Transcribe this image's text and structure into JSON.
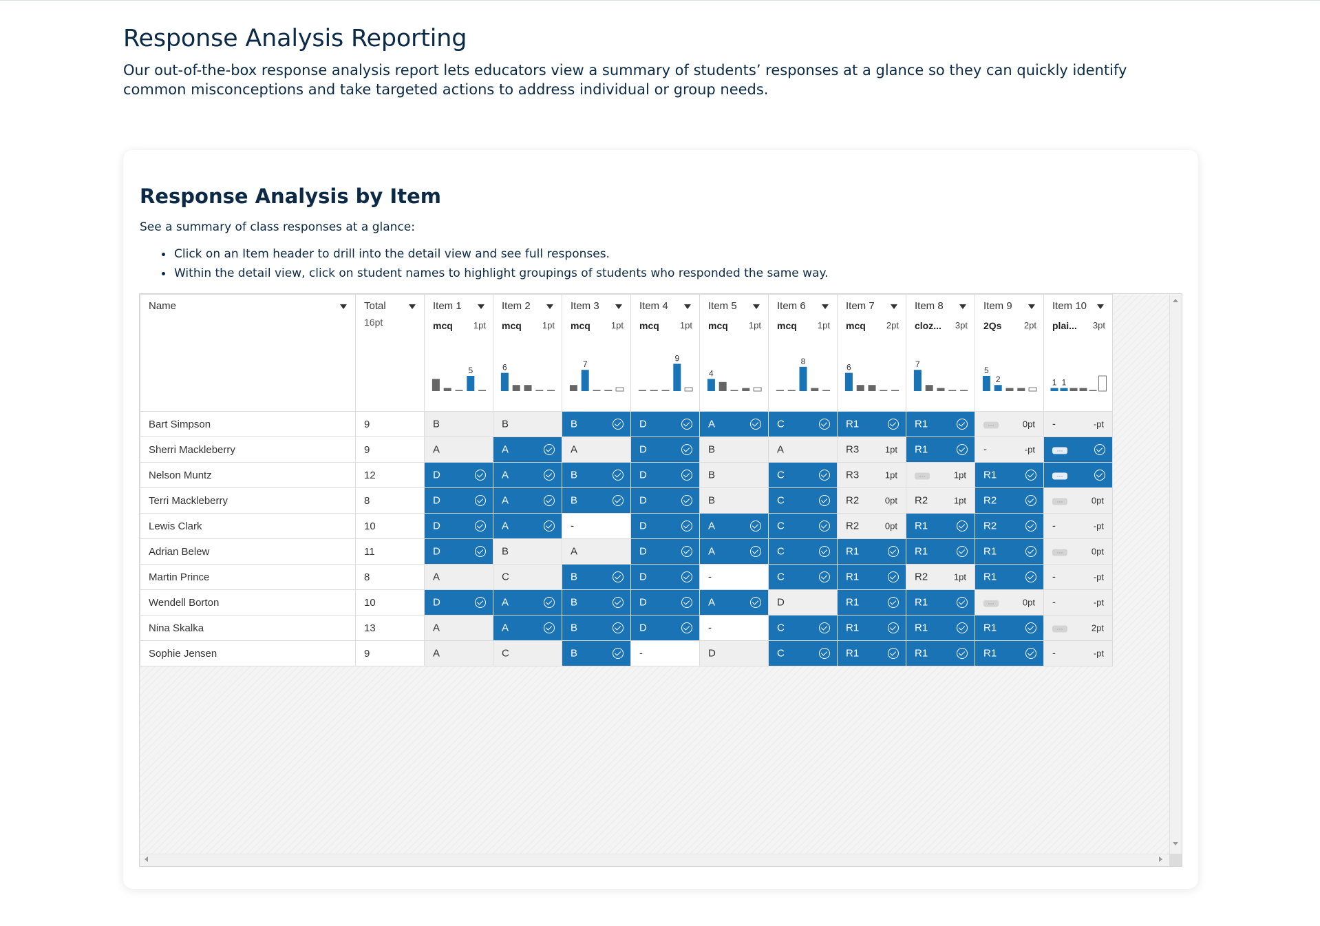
{
  "page": {
    "title": "Response Analysis Reporting",
    "intro": "Our out-of-the-box response analysis report lets educators view a summary of students’ responses at a glance so they can quickly identify common misconceptions and take targeted actions to address individual or group needs."
  },
  "card": {
    "title": "Response Analysis by Item",
    "subtitle": "See a summary of class responses at a glance:",
    "bullets": [
      "Click on an Item header to drill into the detail view and see full responses.",
      "Within the detail view, click on student names to highlight groupings of students who responded the same way."
    ]
  },
  "colors": {
    "correct": "#1a73b5",
    "incorrect": "#efefef",
    "bar_correct": "#1a73b5",
    "bar_other": "#666666"
  },
  "grid": {
    "name_header": "Name",
    "total_header": "Total",
    "total_points": "16pt",
    "items": [
      {
        "label": "Item 1",
        "type": "mcq",
        "pts": "1pt",
        "bars": [
          {
            "v": 4
          },
          {
            "v": 1
          },
          {
            "v": 0
          },
          {
            "v": 5,
            "c": true,
            "l": "5"
          },
          {
            "v": 0
          }
        ]
      },
      {
        "label": "Item 2",
        "type": "mcq",
        "pts": "1pt",
        "bars": [
          {
            "v": 6,
            "c": true,
            "l": "6"
          },
          {
            "v": 2
          },
          {
            "v": 2
          },
          {
            "v": 0
          },
          {
            "v": 0
          }
        ]
      },
      {
        "label": "Item 3",
        "type": "mcq",
        "pts": "1pt",
        "bars": [
          {
            "v": 2
          },
          {
            "v": 7,
            "c": true,
            "l": "7"
          },
          {
            "v": 0
          },
          {
            "v": 0
          },
          {
            "v": 1,
            "o": true
          }
        ]
      },
      {
        "label": "Item 4",
        "type": "mcq",
        "pts": "1pt",
        "bars": [
          {
            "v": 0
          },
          {
            "v": 0
          },
          {
            "v": 0
          },
          {
            "v": 9,
            "c": true,
            "l": "9"
          },
          {
            "v": 1,
            "o": true
          }
        ]
      },
      {
        "label": "Item 5",
        "type": "mcq",
        "pts": "1pt",
        "bars": [
          {
            "v": 4,
            "c": true,
            "l": "4"
          },
          {
            "v": 3
          },
          {
            "v": 0
          },
          {
            "v": 1
          },
          {
            "v": 2,
            "o": true
          }
        ]
      },
      {
        "label": "Item 6",
        "type": "mcq",
        "pts": "1pt",
        "bars": [
          {
            "v": 0
          },
          {
            "v": 0
          },
          {
            "v": 8,
            "c": true,
            "l": "8"
          },
          {
            "v": 1
          },
          {
            "v": 0
          }
        ]
      },
      {
        "label": "Item 7",
        "type": "mcq",
        "pts": "2pt",
        "bars": [
          {
            "v": 6,
            "c": true,
            "l": "6"
          },
          {
            "v": 2
          },
          {
            "v": 2
          },
          {
            "v": 0
          },
          {
            "v": 0
          }
        ]
      },
      {
        "label": "Item 8",
        "type": "cloz...",
        "pts": "3pt",
        "bars": [
          {
            "v": 7,
            "c": true,
            "l": "7"
          },
          {
            "v": 2
          },
          {
            "v": 1
          },
          {
            "v": 0
          },
          {
            "v": 0
          }
        ]
      },
      {
        "label": "Item 9",
        "type": "2Qs",
        "pts": "2pt",
        "bars": [
          {
            "v": 5,
            "c": true,
            "l": "5"
          },
          {
            "v": 2,
            "c": true,
            "l": "2"
          },
          {
            "v": 1
          },
          {
            "v": 1
          },
          {
            "v": 1,
            "o": true
          }
        ]
      },
      {
        "label": "Item 10",
        "type": "plai...",
        "pts": "3pt",
        "bars": [
          {
            "v": 1,
            "c": true,
            "l": "1"
          },
          {
            "v": 1,
            "c": true,
            "l": "1"
          },
          {
            "v": 1
          },
          {
            "v": 1
          },
          {
            "v": 0
          },
          {
            "v": 5,
            "o": true
          }
        ]
      }
    ],
    "rows": [
      {
        "name": "Bart Simpson",
        "total": "9",
        "cells": [
          {
            "v": "B"
          },
          {
            "v": "B"
          },
          {
            "v": "B",
            "c": 1
          },
          {
            "v": "D",
            "c": 1
          },
          {
            "v": "A",
            "c": 1
          },
          {
            "v": "C",
            "c": 1
          },
          {
            "v": "R1",
            "c": 1
          },
          {
            "v": "R1",
            "c": 1
          },
          {
            "e": 1,
            "p": "0pt"
          },
          {
            "v": "-",
            "p": "-pt"
          }
        ]
      },
      {
        "name": "Sherri Mackleberry",
        "total": "9",
        "cells": [
          {
            "v": "A"
          },
          {
            "v": "A",
            "c": 1
          },
          {
            "v": "A"
          },
          {
            "v": "D",
            "c": 1
          },
          {
            "v": "B"
          },
          {
            "v": "A"
          },
          {
            "v": "R3",
            "p": "1pt"
          },
          {
            "v": "R1",
            "c": 1
          },
          {
            "v": "-",
            "p": "-pt"
          },
          {
            "e": 1,
            "c": 1
          }
        ]
      },
      {
        "name": "Nelson Muntz",
        "total": "12",
        "cells": [
          {
            "v": "D",
            "c": 1
          },
          {
            "v": "A",
            "c": 1
          },
          {
            "v": "B",
            "c": 1
          },
          {
            "v": "D",
            "c": 1
          },
          {
            "v": "B"
          },
          {
            "v": "C",
            "c": 1
          },
          {
            "v": "R3",
            "p": "1pt"
          },
          {
            "e": 1,
            "p": "1pt"
          },
          {
            "v": "R1",
            "c": 1
          },
          {
            "e": 1,
            "c": 1
          }
        ]
      },
      {
        "name": "Terri Mackleberry",
        "total": "8",
        "cells": [
          {
            "v": "D",
            "c": 1
          },
          {
            "v": "A",
            "c": 1
          },
          {
            "v": "B",
            "c": 1
          },
          {
            "v": "D",
            "c": 1
          },
          {
            "v": "B"
          },
          {
            "v": "C",
            "c": 1
          },
          {
            "v": "R2",
            "p": "0pt"
          },
          {
            "v": "R2",
            "p": "1pt"
          },
          {
            "v": "R2",
            "c": 1
          },
          {
            "e": 1,
            "p": "0pt"
          }
        ]
      },
      {
        "name": "Lewis Clark",
        "total": "10",
        "cells": [
          {
            "v": "D",
            "c": 1
          },
          {
            "v": "A",
            "c": 1
          },
          {
            "v": "-",
            "b": 1
          },
          {
            "v": "D",
            "c": 1
          },
          {
            "v": "A",
            "c": 1
          },
          {
            "v": "C",
            "c": 1
          },
          {
            "v": "R2",
            "p": "0pt"
          },
          {
            "v": "R1",
            "c": 1
          },
          {
            "v": "R2",
            "c": 1
          },
          {
            "v": "-",
            "p": "-pt"
          }
        ]
      },
      {
        "name": "Adrian Belew",
        "total": "11",
        "cells": [
          {
            "v": "D",
            "c": 1
          },
          {
            "v": "B"
          },
          {
            "v": "A"
          },
          {
            "v": "D",
            "c": 1
          },
          {
            "v": "A",
            "c": 1
          },
          {
            "v": "C",
            "c": 1
          },
          {
            "v": "R1",
            "c": 1
          },
          {
            "v": "R1",
            "c": 1
          },
          {
            "v": "R1",
            "c": 1
          },
          {
            "e": 1,
            "p": "0pt"
          }
        ]
      },
      {
        "name": "Martin Prince",
        "total": "8",
        "cells": [
          {
            "v": "A"
          },
          {
            "v": "C"
          },
          {
            "v": "B",
            "c": 1
          },
          {
            "v": "D",
            "c": 1
          },
          {
            "v": "-",
            "b": 1
          },
          {
            "v": "C",
            "c": 1
          },
          {
            "v": "R1",
            "c": 1
          },
          {
            "v": "R2",
            "p": "1pt"
          },
          {
            "v": "R1",
            "c": 1
          },
          {
            "v": "-",
            "p": "-pt"
          }
        ]
      },
      {
        "name": "Wendell Borton",
        "total": "10",
        "cells": [
          {
            "v": "D",
            "c": 1
          },
          {
            "v": "A",
            "c": 1
          },
          {
            "v": "B",
            "c": 1
          },
          {
            "v": "D",
            "c": 1
          },
          {
            "v": "A",
            "c": 1
          },
          {
            "v": "D"
          },
          {
            "v": "R1",
            "c": 1
          },
          {
            "v": "R1",
            "c": 1
          },
          {
            "e": 1,
            "p": "0pt"
          },
          {
            "v": "-",
            "p": "-pt"
          }
        ]
      },
      {
        "name": "Nina Skalka",
        "total": "13",
        "cells": [
          {
            "v": "A"
          },
          {
            "v": "A",
            "c": 1
          },
          {
            "v": "B",
            "c": 1
          },
          {
            "v": "D",
            "c": 1
          },
          {
            "v": "-",
            "b": 1
          },
          {
            "v": "C",
            "c": 1
          },
          {
            "v": "R1",
            "c": 1
          },
          {
            "v": "R1",
            "c": 1
          },
          {
            "v": "R1",
            "c": 1
          },
          {
            "e": 1,
            "p": "2pt"
          }
        ]
      },
      {
        "name": "Sophie Jensen",
        "total": "9",
        "cells": [
          {
            "v": "A"
          },
          {
            "v": "C"
          },
          {
            "v": "B",
            "c": 1
          },
          {
            "v": "-",
            "b": 1
          },
          {
            "v": "D"
          },
          {
            "v": "C",
            "c": 1
          },
          {
            "v": "R1",
            "c": 1
          },
          {
            "v": "R1",
            "c": 1
          },
          {
            "v": "R1",
            "c": 1
          },
          {
            "v": "-",
            "p": "-pt"
          }
        ]
      }
    ]
  }
}
